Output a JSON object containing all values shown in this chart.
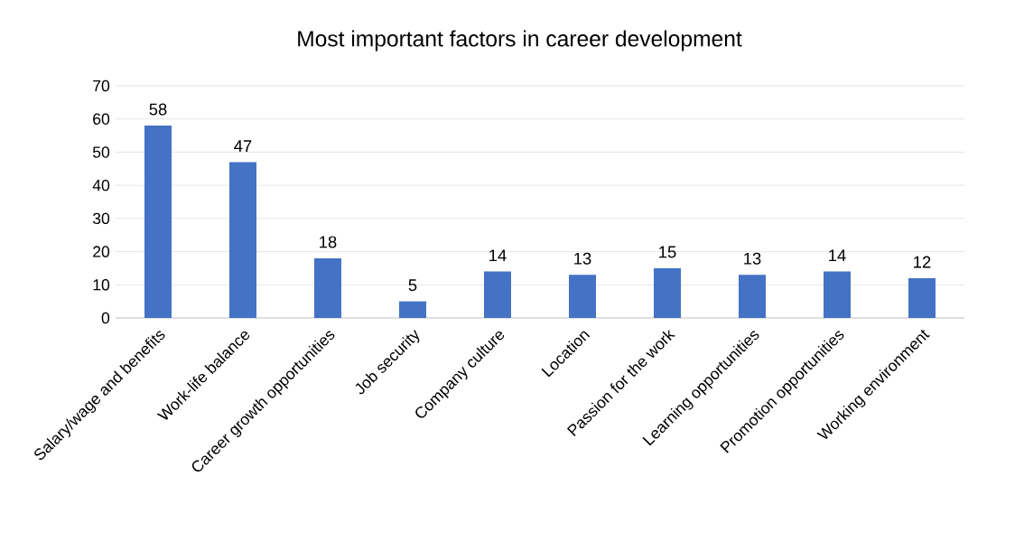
{
  "chart_data": {
    "type": "bar",
    "title": "Most important factors in career development",
    "categories": [
      "Salary/wage and benefits",
      "Work-life balance",
      "Career growth opportunities",
      "Job security",
      "Company culture",
      "Location",
      "Passion for the work",
      "Learning opportunities",
      "Promotion opportunities",
      "Working environment"
    ],
    "values": [
      58,
      47,
      18,
      5,
      14,
      13,
      15,
      13,
      14,
      12
    ],
    "color": "#4472c4",
    "ylim": [
      0,
      70
    ],
    "yticks": [
      0,
      10,
      20,
      30,
      40,
      50,
      60,
      70
    ],
    "grid": "y",
    "data_labels": true
  }
}
